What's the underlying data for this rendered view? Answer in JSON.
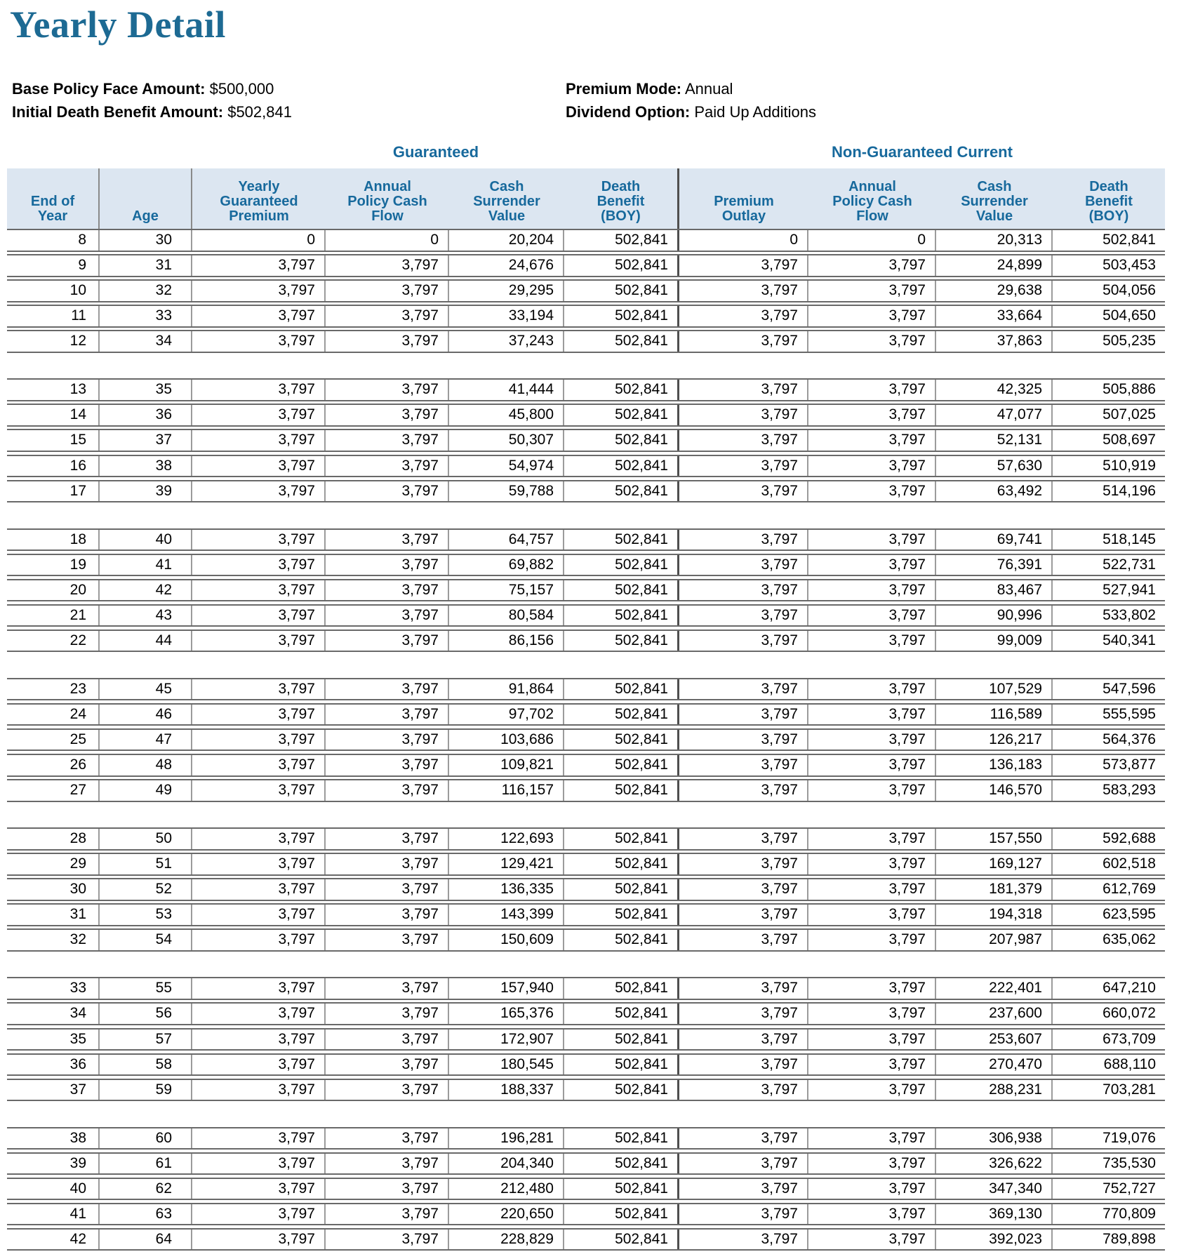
{
  "page": {
    "title": "Yearly Detail"
  },
  "policy_info": {
    "left": [
      {
        "label": "Base Policy Face Amount:",
        "value": "$500,000"
      },
      {
        "label": "Initial Death Benefit Amount:",
        "value": "$502,841"
      }
    ],
    "right": [
      {
        "label": "Premium Mode:",
        "value": "Annual"
      },
      {
        "label": "Dividend Option:",
        "value": "Paid Up Additions"
      }
    ]
  },
  "table": {
    "section_headers": {
      "guaranteed": "Guaranteed",
      "non_guaranteed": "Non-Guaranteed Current"
    },
    "columns": [
      {
        "lines": [
          "End of",
          "Year"
        ]
      },
      {
        "lines": [
          "Age"
        ]
      },
      {
        "lines": [
          "Yearly",
          "Guaranteed",
          "Premium"
        ]
      },
      {
        "lines": [
          "Annual",
          "Policy Cash",
          "Flow"
        ]
      },
      {
        "lines": [
          "Cash",
          "Surrender",
          "Value"
        ]
      },
      {
        "lines": [
          "Death",
          "Benefit",
          "(BOY)"
        ]
      },
      {
        "lines": [
          "Premium",
          "Outlay"
        ]
      },
      {
        "lines": [
          "Annual",
          "Policy Cash",
          "Flow"
        ]
      },
      {
        "lines": [
          "Cash",
          "Surrender",
          "Value"
        ]
      },
      {
        "lines": [
          "Death",
          "Benefit",
          "(BOY)"
        ]
      }
    ],
    "groups": [
      [
        [
          "8",
          "30",
          "0",
          "0",
          "20,204",
          "502,841",
          "0",
          "0",
          "20,313",
          "502,841"
        ],
        [
          "9",
          "31",
          "3,797",
          "3,797",
          "24,676",
          "502,841",
          "3,797",
          "3,797",
          "24,899",
          "503,453"
        ],
        [
          "10",
          "32",
          "3,797",
          "3,797",
          "29,295",
          "502,841",
          "3,797",
          "3,797",
          "29,638",
          "504,056"
        ],
        [
          "11",
          "33",
          "3,797",
          "3,797",
          "33,194",
          "502,841",
          "3,797",
          "3,797",
          "33,664",
          "504,650"
        ],
        [
          "12",
          "34",
          "3,797",
          "3,797",
          "37,243",
          "502,841",
          "3,797",
          "3,797",
          "37,863",
          "505,235"
        ]
      ],
      [
        [
          "13",
          "35",
          "3,797",
          "3,797",
          "41,444",
          "502,841",
          "3,797",
          "3,797",
          "42,325",
          "505,886"
        ],
        [
          "14",
          "36",
          "3,797",
          "3,797",
          "45,800",
          "502,841",
          "3,797",
          "3,797",
          "47,077",
          "507,025"
        ],
        [
          "15",
          "37",
          "3,797",
          "3,797",
          "50,307",
          "502,841",
          "3,797",
          "3,797",
          "52,131",
          "508,697"
        ],
        [
          "16",
          "38",
          "3,797",
          "3,797",
          "54,974",
          "502,841",
          "3,797",
          "3,797",
          "57,630",
          "510,919"
        ],
        [
          "17",
          "39",
          "3,797",
          "3,797",
          "59,788",
          "502,841",
          "3,797",
          "3,797",
          "63,492",
          "514,196"
        ]
      ],
      [
        [
          "18",
          "40",
          "3,797",
          "3,797",
          "64,757",
          "502,841",
          "3,797",
          "3,797",
          "69,741",
          "518,145"
        ],
        [
          "19",
          "41",
          "3,797",
          "3,797",
          "69,882",
          "502,841",
          "3,797",
          "3,797",
          "76,391",
          "522,731"
        ],
        [
          "20",
          "42",
          "3,797",
          "3,797",
          "75,157",
          "502,841",
          "3,797",
          "3,797",
          "83,467",
          "527,941"
        ],
        [
          "21",
          "43",
          "3,797",
          "3,797",
          "80,584",
          "502,841",
          "3,797",
          "3,797",
          "90,996",
          "533,802"
        ],
        [
          "22",
          "44",
          "3,797",
          "3,797",
          "86,156",
          "502,841",
          "3,797",
          "3,797",
          "99,009",
          "540,341"
        ]
      ],
      [
        [
          "23",
          "45",
          "3,797",
          "3,797",
          "91,864",
          "502,841",
          "3,797",
          "3,797",
          "107,529",
          "547,596"
        ],
        [
          "24",
          "46",
          "3,797",
          "3,797",
          "97,702",
          "502,841",
          "3,797",
          "3,797",
          "116,589",
          "555,595"
        ],
        [
          "25",
          "47",
          "3,797",
          "3,797",
          "103,686",
          "502,841",
          "3,797",
          "3,797",
          "126,217",
          "564,376"
        ],
        [
          "26",
          "48",
          "3,797",
          "3,797",
          "109,821",
          "502,841",
          "3,797",
          "3,797",
          "136,183",
          "573,877"
        ],
        [
          "27",
          "49",
          "3,797",
          "3,797",
          "116,157",
          "502,841",
          "3,797",
          "3,797",
          "146,570",
          "583,293"
        ]
      ],
      [
        [
          "28",
          "50",
          "3,797",
          "3,797",
          "122,693",
          "502,841",
          "3,797",
          "3,797",
          "157,550",
          "592,688"
        ],
        [
          "29",
          "51",
          "3,797",
          "3,797",
          "129,421",
          "502,841",
          "3,797",
          "3,797",
          "169,127",
          "602,518"
        ],
        [
          "30",
          "52",
          "3,797",
          "3,797",
          "136,335",
          "502,841",
          "3,797",
          "3,797",
          "181,379",
          "612,769"
        ],
        [
          "31",
          "53",
          "3,797",
          "3,797",
          "143,399",
          "502,841",
          "3,797",
          "3,797",
          "194,318",
          "623,595"
        ],
        [
          "32",
          "54",
          "3,797",
          "3,797",
          "150,609",
          "502,841",
          "3,797",
          "3,797",
          "207,987",
          "635,062"
        ]
      ],
      [
        [
          "33",
          "55",
          "3,797",
          "3,797",
          "157,940",
          "502,841",
          "3,797",
          "3,797",
          "222,401",
          "647,210"
        ],
        [
          "34",
          "56",
          "3,797",
          "3,797",
          "165,376",
          "502,841",
          "3,797",
          "3,797",
          "237,600",
          "660,072"
        ],
        [
          "35",
          "57",
          "3,797",
          "3,797",
          "172,907",
          "502,841",
          "3,797",
          "3,797",
          "253,607",
          "673,709"
        ],
        [
          "36",
          "58",
          "3,797",
          "3,797",
          "180,545",
          "502,841",
          "3,797",
          "3,797",
          "270,470",
          "688,110"
        ],
        [
          "37",
          "59",
          "3,797",
          "3,797",
          "188,337",
          "502,841",
          "3,797",
          "3,797",
          "288,231",
          "703,281"
        ]
      ],
      [
        [
          "38",
          "60",
          "3,797",
          "3,797",
          "196,281",
          "502,841",
          "3,797",
          "3,797",
          "306,938",
          "719,076"
        ],
        [
          "39",
          "61",
          "3,797",
          "3,797",
          "204,340",
          "502,841",
          "3,797",
          "3,797",
          "326,622",
          "735,530"
        ],
        [
          "40",
          "62",
          "3,797",
          "3,797",
          "212,480",
          "502,841",
          "3,797",
          "3,797",
          "347,340",
          "752,727"
        ],
        [
          "41",
          "63",
          "3,797",
          "3,797",
          "220,650",
          "502,841",
          "3,797",
          "3,797",
          "369,130",
          "770,809"
        ],
        [
          "42",
          "64",
          "3,797",
          "3,797",
          "228,829",
          "502,841",
          "3,797",
          "3,797",
          "392,023",
          "789,898"
        ]
      ]
    ]
  },
  "colors": {
    "title_blue": "#1d6a93",
    "header_blue": "#17699c",
    "band_background": "#dce6f1",
    "row_line_gray": "#696969",
    "column_line_gray": "#9b9b9b",
    "section_divider_gray": "#4f4f4f"
  }
}
